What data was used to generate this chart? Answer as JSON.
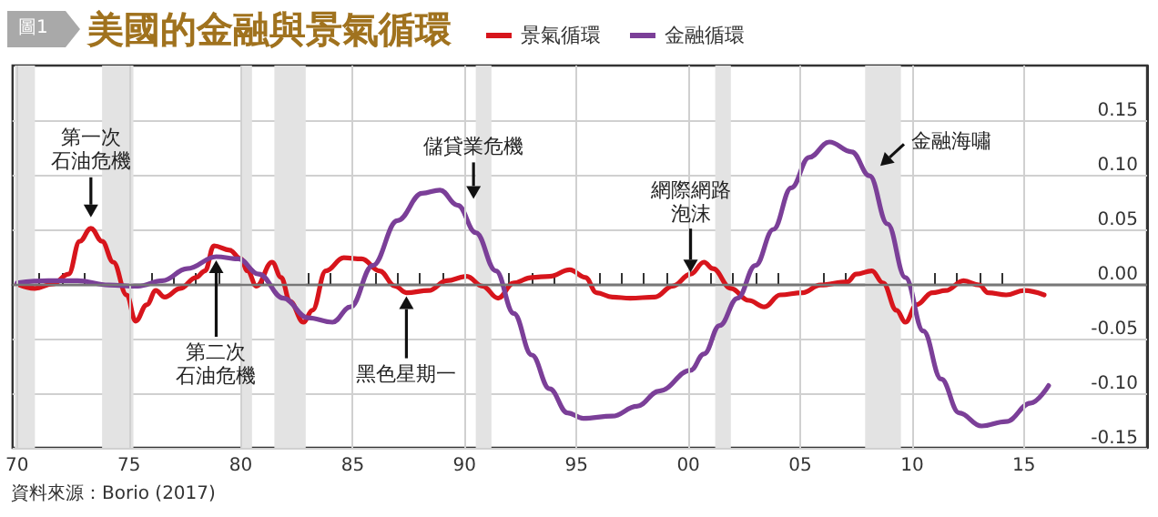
{
  "chart_data": {
    "type": "line",
    "title": "美國的金融與景氣循環",
    "legend": "top",
    "grid": true,
    "marker": "none",
    "line_style": "solid",
    "xlim": [
      1969.8,
      2020.5
    ],
    "ylim": [
      -0.15,
      0.2
    ],
    "xticks": [
      {
        "value": 1970,
        "label": "70"
      },
      {
        "value": 1971,
        "label": null
      },
      {
        "value": 1972,
        "label": null
      },
      {
        "value": 1973,
        "label": null
      },
      {
        "value": 1974,
        "label": null
      },
      {
        "value": 1975,
        "label": "75"
      },
      {
        "value": 1976,
        "label": null
      },
      {
        "value": 1977,
        "label": null
      },
      {
        "value": 1978,
        "label": null
      },
      {
        "value": 1979,
        "label": null
      },
      {
        "value": 1980,
        "label": "80"
      },
      {
        "value": 1981,
        "label": null
      },
      {
        "value": 1982,
        "label": null
      },
      {
        "value": 1983,
        "label": null
      },
      {
        "value": 1984,
        "label": null
      },
      {
        "value": 1985,
        "label": "85"
      },
      {
        "value": 1986,
        "label": null
      },
      {
        "value": 1987,
        "label": null
      },
      {
        "value": 1988,
        "label": null
      },
      {
        "value": 1989,
        "label": null
      },
      {
        "value": 1990,
        "label": "90"
      },
      {
        "value": 1991,
        "label": null
      },
      {
        "value": 1992,
        "label": null
      },
      {
        "value": 1993,
        "label": null
      },
      {
        "value": 1994,
        "label": null
      },
      {
        "value": 1995,
        "label": "95"
      },
      {
        "value": 1996,
        "label": null
      },
      {
        "value": 1997,
        "label": null
      },
      {
        "value": 1998,
        "label": null
      },
      {
        "value": 1999,
        "label": null
      },
      {
        "value": 2000,
        "label": "00"
      },
      {
        "value": 2001,
        "label": null
      },
      {
        "value": 2002,
        "label": null
      },
      {
        "value": 2003,
        "label": null
      },
      {
        "value": 2004,
        "label": null
      },
      {
        "value": 2005,
        "label": "05"
      },
      {
        "value": 2006,
        "label": null
      },
      {
        "value": 2007,
        "label": null
      },
      {
        "value": 2008,
        "label": null
      },
      {
        "value": 2009,
        "label": null
      },
      {
        "value": 2010,
        "label": "10"
      },
      {
        "value": 2011,
        "label": null
      },
      {
        "value": 2012,
        "label": null
      },
      {
        "value": 2013,
        "label": null
      },
      {
        "value": 2014,
        "label": null
      },
      {
        "value": 2015,
        "label": "15"
      }
    ],
    "yticks": [
      {
        "value": -0.15,
        "label": "-0.15"
      },
      {
        "value": -0.1,
        "label": "-0.10"
      },
      {
        "value": -0.05,
        "label": "-0.05"
      },
      {
        "value": 0,
        "label": "0.00"
      },
      {
        "value": 0.05,
        "label": "0.05"
      },
      {
        "value": 0.1,
        "label": "0.10"
      },
      {
        "value": 0.15,
        "label": "0.15"
      }
    ],
    "series": [
      {
        "name": "景氣循環",
        "color": "#d7151c",
        "x": [
          1970,
          1970.8,
          1971.6,
          1972.3,
          1972.8,
          1973.3,
          1973.8,
          1974.3,
          1974.9,
          1975.3,
          1975.8,
          1976.2,
          1976.6,
          1977.3,
          1978.0,
          1978.4,
          1978.8,
          1979.5,
          1980.0,
          1980.3,
          1980.7,
          1981.4,
          1981.8,
          1982.2,
          1982.8,
          1983.2,
          1983.8,
          1984.6,
          1985.4,
          1986.2,
          1986.9,
          1987.4,
          1988.4,
          1989.2,
          1990.1,
          1990.8,
          1991.5,
          1992.2,
          1993.0,
          1993.8,
          1994.7,
          1995.4,
          1995.9,
          1996.6,
          1997.4,
          1998.5,
          1999.3,
          2000.1,
          2000.7,
          2001.1,
          2001.9,
          2002.7,
          2003.4,
          2004.1,
          2005.1,
          2005.9,
          2007.1,
          2007.5,
          2008.2,
          2008.7,
          2009.3,
          2009.7,
          2010.2,
          2010.9,
          2011.5,
          2012.3,
          2013.0,
          2013.4,
          2014.2,
          2015.0,
          2015.9
        ],
        "values": [
          0.0,
          -0.004,
          0.0,
          0.009,
          0.039,
          0.051,
          0.039,
          0.02,
          -0.01,
          -0.034,
          -0.019,
          -0.006,
          -0.012,
          -0.004,
          0.006,
          0.012,
          0.035,
          0.031,
          0.023,
          0.012,
          -0.002,
          0.02,
          0.006,
          -0.016,
          -0.035,
          -0.024,
          0.012,
          0.024,
          0.023,
          0.012,
          -0.002,
          -0.008,
          -0.006,
          0.003,
          0.007,
          -0.002,
          -0.013,
          0.001,
          0.006,
          0.007,
          0.013,
          0.006,
          -0.008,
          -0.012,
          -0.013,
          -0.012,
          -0.002,
          0.009,
          0.02,
          0.014,
          -0.004,
          -0.015,
          -0.021,
          -0.01,
          -0.008,
          -0.001,
          0.002,
          0.009,
          0.012,
          0.001,
          -0.024,
          -0.035,
          -0.019,
          -0.008,
          -0.006,
          0.003,
          -0.001,
          -0.008,
          -0.01,
          -0.006,
          -0.01
        ]
      },
      {
        "name": "金融循環",
        "color": "#7b3f98",
        "x": [
          1970,
          1971.4,
          1972.7,
          1974.1,
          1975.4,
          1976.5,
          1977.6,
          1978.9,
          1979.9,
          1980.8,
          1981.9,
          1983.0,
          1984.1,
          1984.9,
          1985.9,
          1987.0,
          1988.1,
          1988.9,
          1989.7,
          1990.5,
          1991.4,
          1992.2,
          1993.0,
          1993.8,
          1994.6,
          1995.3,
          1996.6,
          1997.7,
          1998.7,
          2000.1,
          2000.7,
          2001.4,
          2002.2,
          2003.0,
          2003.8,
          2004.6,
          2005.4,
          2006.3,
          2007.3,
          2008.1,
          2008.9,
          2009.7,
          2010.5,
          2011.3,
          2012.1,
          2013.1,
          2014.2,
          2015.3,
          2016.1
        ],
        "values": [
          0.001,
          0.003,
          0.003,
          -0.001,
          -0.002,
          0.003,
          0.014,
          0.025,
          0.023,
          0.009,
          -0.013,
          -0.031,
          -0.035,
          -0.021,
          0.017,
          0.058,
          0.083,
          0.086,
          0.072,
          0.047,
          0.012,
          -0.027,
          -0.065,
          -0.096,
          -0.118,
          -0.123,
          -0.121,
          -0.112,
          -0.098,
          -0.079,
          -0.064,
          -0.038,
          -0.013,
          0.017,
          0.05,
          0.088,
          0.116,
          0.13,
          0.121,
          0.099,
          0.055,
          0.006,
          -0.043,
          -0.087,
          -0.118,
          -0.13,
          -0.126,
          -0.109,
          -0.093
        ]
      }
    ],
    "ref_lines": [
      {
        "axis": "y",
        "value": 0,
        "color": "#777777"
      }
    ],
    "bands": [
      {
        "axis": "x",
        "from": 1969.9,
        "to": 1970.8,
        "color": "#e3e3e3"
      },
      {
        "axis": "x",
        "from": 1973.8,
        "to": 1975.2,
        "color": "#e3e3e3"
      },
      {
        "axis": "x",
        "from": 1980.0,
        "to": 1980.5,
        "color": "#e3e3e3"
      },
      {
        "axis": "x",
        "from": 1981.5,
        "to": 1982.9,
        "color": "#e3e3e3"
      },
      {
        "axis": "x",
        "from": 1990.5,
        "to": 1991.2,
        "color": "#e3e3e3"
      },
      {
        "axis": "x",
        "from": 2001.2,
        "to": 2001.9,
        "color": "#e3e3e3"
      },
      {
        "axis": "x",
        "from": 2007.9,
        "to": 2009.5,
        "color": "#e3e3e3"
      }
    ],
    "annotations": [
      "圖1",
      {
        "text": "第一次石油危機",
        "x": 1973.3,
        "y": 0.051
      },
      {
        "text": "第二次石油危機",
        "x": 1978.9,
        "y": 0.025
      },
      {
        "text": "儲貸業危機",
        "x": 1990.4,
        "y": 0.078
      },
      {
        "text": "黑色星期一",
        "x": 1987.4,
        "y": -0.008
      },
      {
        "text": "網際網路泡沫",
        "x": 2000.1,
        "y": 0.009
      },
      {
        "text": "金融海嘯",
        "x": 2008.1,
        "y": 0.099
      },
      "資料來源：Borio (2017)"
    ]
  }
}
